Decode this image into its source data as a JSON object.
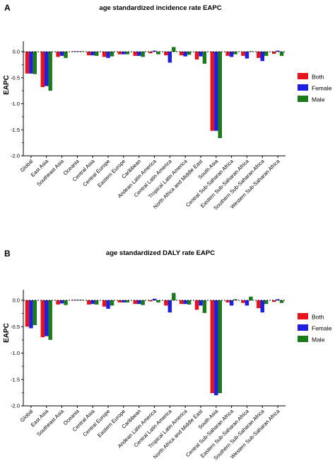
{
  "panels": [
    {
      "letter": "A"
    },
    {
      "letter": "B"
    }
  ],
  "chart_data": [
    {
      "type": "bar",
      "title": "age standardized incidence rate EAPC",
      "ylabel": "EAPC",
      "xlabel": "",
      "ylim": [
        -2.0,
        0.0
      ],
      "yticks": [
        "0.0",
        "-0.5",
        "-1.0",
        "-1.5",
        "-2.0"
      ],
      "yticks_values": [
        0.0,
        -0.5,
        -1.0,
        -1.5,
        -2.0
      ],
      "legend_position": "right",
      "categories": [
        "Global",
        "East Asia",
        "Southeast Asia",
        "Oceania",
        "Central Asia",
        "Central Europe",
        "Eastern Europe",
        "Caribbean",
        "Andean Latin America",
        "Central Latin America",
        "Tropical Latin America",
        "North Africa and Middle East",
        "South Asia",
        "Central Sub-Saharan Africa",
        "Eastern Sub-Saharan Africa",
        "Southern Sub-Saharan Africa",
        "Western Sub-Saharan Africa"
      ],
      "series": [
        {
          "name": "Both",
          "color": "#e8141b",
          "values": [
            -0.42,
            -0.68,
            -0.1,
            0.01,
            -0.07,
            -0.1,
            -0.05,
            -0.08,
            -0.03,
            -0.07,
            -0.07,
            -0.15,
            -1.52,
            -0.08,
            -0.08,
            -0.12,
            -0.04
          ]
        },
        {
          "name": "Female",
          "color": "#1f1fe0",
          "values": [
            -0.42,
            -0.66,
            -0.08,
            0.01,
            -0.07,
            -0.12,
            -0.05,
            -0.08,
            0.02,
            -0.21,
            -0.09,
            -0.09,
            -1.52,
            -0.1,
            -0.13,
            -0.18,
            0.02
          ]
        },
        {
          "name": "Male",
          "color": "#1b7a1b",
          "values": [
            -0.43,
            -0.75,
            -0.12,
            0.01,
            -0.08,
            -0.09,
            -0.05,
            -0.1,
            -0.05,
            0.09,
            -0.06,
            -0.23,
            -1.66,
            -0.05,
            0.01,
            -0.08,
            -0.08
          ]
        }
      ]
    },
    {
      "type": "bar",
      "title": "age standardized DALY rate EAPC",
      "ylabel": "EAPC",
      "xlabel": "",
      "ylim": [
        -2.0,
        0.0
      ],
      "yticks": [
        "0.0",
        "-0.5",
        "-1.0",
        "-1.5",
        "-2.0"
      ],
      "yticks_values": [
        0.0,
        -0.5,
        -1.0,
        -1.5,
        -2.0
      ],
      "legend_position": "right",
      "categories": [
        "Global",
        "East Asia",
        "Southeast Asia",
        "Oceania",
        "Central Asia",
        "Central Europe",
        "Eastern Europe",
        "Caribbean",
        "Andean Latin America",
        "Central Latin America",
        "Tropical Latin America",
        "North Africa and Middle East",
        "South Asia",
        "Central Sub-Saharan Africa",
        "Eastern Sub-Saharan Africa",
        "Southern Sub-Saharan Africa",
        "Western Sub-Saharan Africa"
      ],
      "series": [
        {
          "name": "Both",
          "color": "#e8141b",
          "values": [
            -0.5,
            -0.7,
            -0.08,
            0.01,
            -0.08,
            -0.12,
            -0.04,
            -0.07,
            -0.02,
            -0.1,
            -0.07,
            -0.18,
            -1.76,
            -0.04,
            -0.05,
            -0.15,
            -0.03
          ]
        },
        {
          "name": "Female",
          "color": "#1f1fe0",
          "values": [
            -0.53,
            -0.68,
            -0.06,
            0.01,
            -0.07,
            -0.16,
            -0.04,
            -0.07,
            0.03,
            -0.23,
            -0.07,
            -0.1,
            -1.8,
            -0.1,
            -0.1,
            -0.23,
            0.02
          ]
        },
        {
          "name": "Male",
          "color": "#1b7a1b",
          "values": [
            -0.47,
            -0.75,
            -0.09,
            0.01,
            -0.08,
            -0.1,
            -0.04,
            -0.09,
            -0.04,
            0.14,
            -0.08,
            -0.24,
            -1.76,
            0.02,
            0.07,
            -0.07,
            -0.05
          ]
        }
      ]
    }
  ]
}
